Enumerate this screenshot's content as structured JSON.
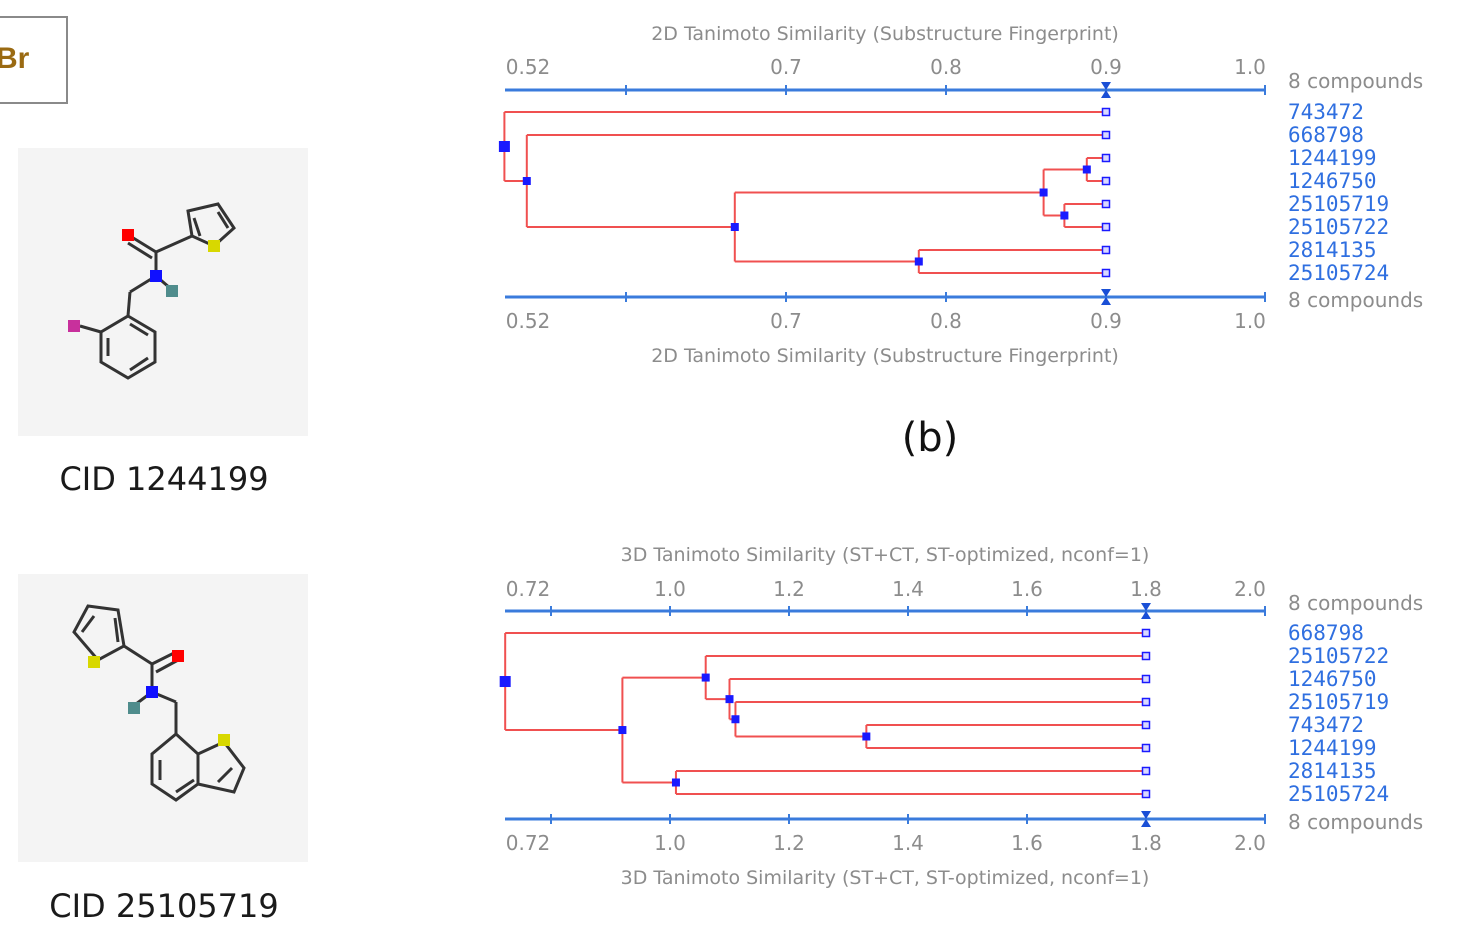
{
  "panel_label_fragment": "Br",
  "panel_letter": "(b)",
  "molecules": [
    {
      "caption": "CID 1244199"
    },
    {
      "caption": "CID 25105719"
    }
  ],
  "colors": {
    "axis": "#3a7bdc",
    "branch": "#f05050",
    "node": "#1a1aff",
    "leaf_label": "#2f6fe0",
    "text_gray": "#8c8c8c"
  },
  "chart_data": [
    {
      "type": "dendrogram",
      "title": "2D Tanimoto Similarity (Substructure Fingerprint)",
      "xlabel": "2D Tanimoto Similarity (Substructure Fingerprint)",
      "xlim": [
        0.52,
        1.0
      ],
      "tick_labels": [
        "0.52",
        "0.7",
        "0.8",
        "0.9",
        "1.0"
      ],
      "tick_values": [
        0.52,
        0.7,
        0.8,
        0.9,
        1.0
      ],
      "minor_ticks": [
        0.6
      ],
      "cutoff": 0.9,
      "count_label": "8 compounds",
      "leaves": [
        "743472",
        "668798",
        "1244199",
        "1246750",
        "25105719",
        "25105722",
        "2814135",
        "25105724"
      ],
      "merges": [
        {
          "id": "a",
          "children": [
            "1244199",
            "1246750"
          ],
          "similarity": 0.888
        },
        {
          "id": "b",
          "children": [
            "25105719",
            "25105722"
          ],
          "similarity": 0.874
        },
        {
          "id": "c",
          "children": [
            "a",
            "b"
          ],
          "similarity": 0.861
        },
        {
          "id": "d",
          "children": [
            "2814135",
            "25105724"
          ],
          "similarity": 0.783
        },
        {
          "id": "e",
          "children": [
            "c",
            "d"
          ],
          "similarity": 0.668
        },
        {
          "id": "f",
          "children": [
            "668798",
            "e"
          ],
          "similarity": 0.538
        },
        {
          "id": "g",
          "children": [
            "743472",
            "f"
          ],
          "similarity": 0.524
        }
      ]
    },
    {
      "type": "dendrogram",
      "title": "3D Tanimoto Similarity (ST+CT, ST-optimized, nconf=1)",
      "xlabel": "3D Tanimoto Similarity (ST+CT, ST-optimized, nconf=1)",
      "xlim": [
        0.72,
        2.0
      ],
      "tick_labels": [
        "0.72",
        "1.0",
        "1.2",
        "1.4",
        "1.6",
        "1.8",
        "2.0"
      ],
      "tick_values": [
        0.72,
        1.0,
        1.2,
        1.4,
        1.6,
        1.8,
        2.0
      ],
      "minor_ticks": [
        0.8
      ],
      "cutoff": 1.8,
      "count_label": "8 compounds",
      "leaves": [
        "668798",
        "25105722",
        "1246750",
        "25105719",
        "743472",
        "1244199",
        "2814135",
        "25105724"
      ],
      "merges": [
        {
          "id": "a",
          "children": [
            "743472",
            "1244199"
          ],
          "similarity": 1.33
        },
        {
          "id": "b",
          "children": [
            "25105719",
            "a"
          ],
          "similarity": 1.11
        },
        {
          "id": "c",
          "children": [
            "1246750",
            "b"
          ],
          "similarity": 1.1
        },
        {
          "id": "d",
          "children": [
            "25105722",
            "c"
          ],
          "similarity": 1.06
        },
        {
          "id": "e",
          "children": [
            "2814135",
            "25105724"
          ],
          "similarity": 1.01
        },
        {
          "id": "f",
          "children": [
            "d",
            "e"
          ],
          "similarity": 0.92
        },
        {
          "id": "g",
          "children": [
            "668798",
            "f"
          ],
          "similarity": 0.723
        }
      ]
    }
  ]
}
